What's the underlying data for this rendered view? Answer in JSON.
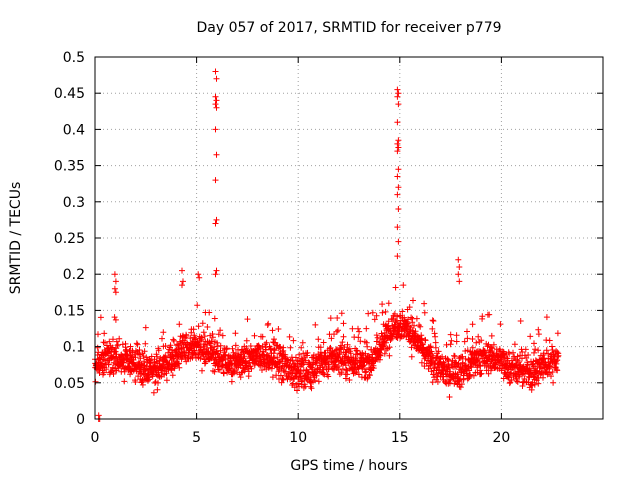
{
  "chart_data": {
    "type": "scatter",
    "title": "Day 057 of 2017, SRMTID for receiver p779",
    "xlabel": "GPS time / hours",
    "ylabel": "SRMTID / TECUs",
    "xlim": [
      0,
      25
    ],
    "ylim": [
      0,
      0.5
    ],
    "xticks": [
      0,
      5,
      10,
      15,
      20
    ],
    "xtick_labels": [
      "0",
      "5",
      "10",
      "15",
      "20"
    ],
    "yticks": [
      0,
      0.05,
      0.1,
      0.15,
      0.2,
      0.25,
      0.3,
      0.35,
      0.4,
      0.45,
      0.5
    ],
    "ytick_labels": [
      "0",
      "0.05",
      "0.1",
      "0.15",
      "0.2",
      "0.25",
      "0.3",
      "0.35",
      "0.4",
      "0.45",
      "0.5"
    ],
    "grid": true,
    "marker": "+",
    "color": "#ff0000",
    "series": [
      {
        "name": "SRMTID",
        "spikes": [
          {
            "x": 5.95,
            "y": [
              0.48,
              0.47,
              0.445,
              0.44,
              0.435,
              0.43,
              0.4,
              0.365,
              0.33,
              0.275,
              0.27,
              0.205,
              0.2
            ]
          },
          {
            "x": 14.9,
            "y": [
              0.455,
              0.45,
              0.445,
              0.435,
              0.41,
              0.385,
              0.38,
              0.375,
              0.37,
              0.345,
              0.335,
              0.32,
              0.31,
              0.29,
              0.265,
              0.245,
              0.225
            ]
          },
          {
            "x": 0.2,
            "y": [
              0.0,
              0.0,
              0.005
            ]
          },
          {
            "x": 1.0,
            "y": [
              0.2,
              0.19,
              0.18,
              0.175
            ]
          },
          {
            "x": 4.3,
            "y": [
              0.205,
              0.19,
              0.185
            ]
          },
          {
            "x": 5.1,
            "y": [
              0.2,
              0.195
            ]
          },
          {
            "x": 17.9,
            "y": [
              0.22,
              0.21,
              0.2,
              0.19
            ]
          }
        ]
      }
    ]
  }
}
